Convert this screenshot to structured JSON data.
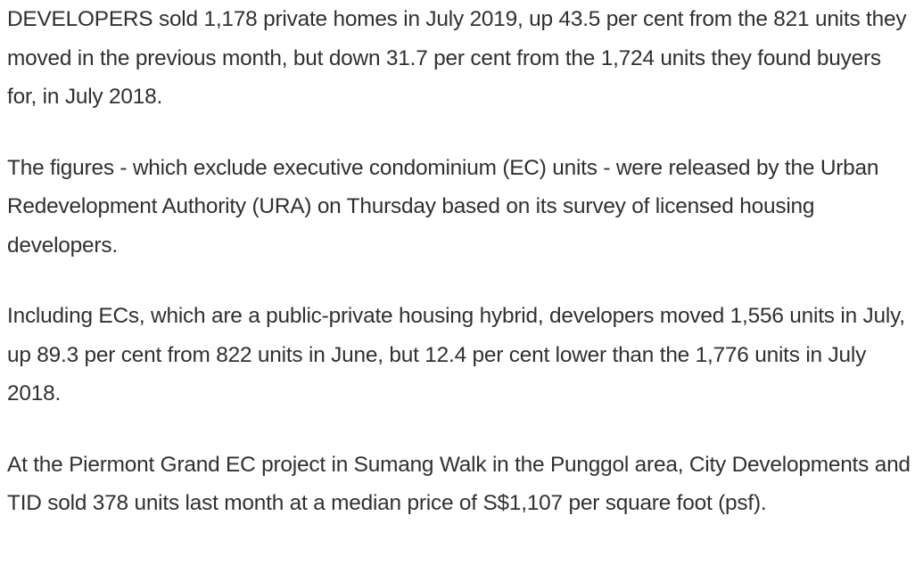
{
  "article": {
    "paragraphs": [
      "DEVELOPERS sold 1,178 private homes in July 2019, up 43.5 per cent from the 821 units they moved in the previous month, but down 31.7 per cent from the 1,724 units they found buyers for, in July 2018.",
      "The figures - which exclude executive condominium (EC) units - were released by the Urban Redevelopment Authority (URA) on Thursday based on its survey of licensed housing developers.",
      "Including ECs, which are a public-private housing hybrid, developers moved 1,556 units in July, up 89.3 per cent from 822 units in June, but 12.4 per cent lower than the 1,776 units in July 2018.",
      "At the Piermont Grand EC project in Sumang Walk in the Punggol area, City Developments and TID sold 378 units last month at a median price of S$1,107 per square foot (psf)."
    ]
  }
}
